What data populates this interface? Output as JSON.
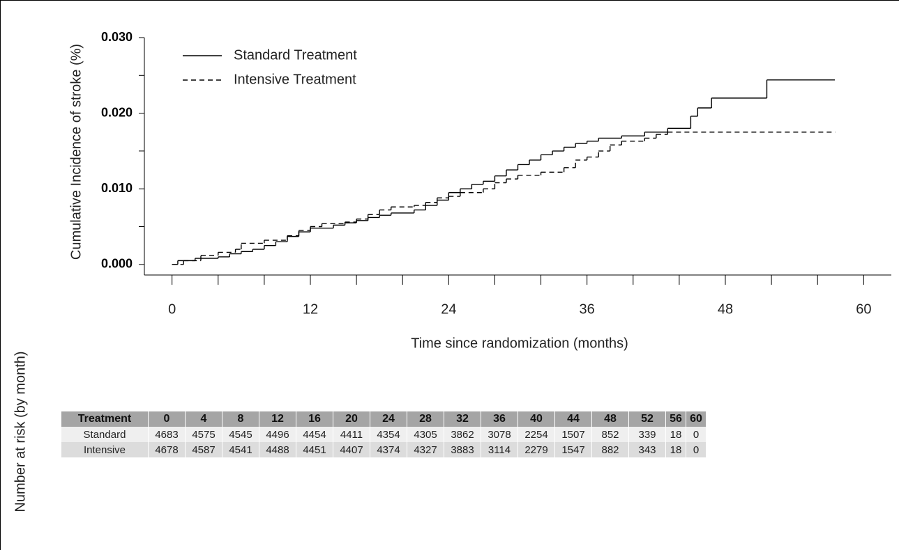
{
  "chart_data": {
    "type": "step",
    "ylabel": "Cumulative Incidence of stroke (%)",
    "xlabel": "Time since randomization (months)",
    "xlim": [
      -2.4,
      62.4
    ],
    "xticks": [
      0,
      12,
      24,
      36,
      48,
      60
    ],
    "xminor_ticks": [
      0,
      4,
      8,
      12,
      16,
      20,
      24,
      28,
      32,
      36,
      40,
      44,
      48,
      52,
      56,
      60
    ],
    "ylim": [
      -0.0014,
      0.03
    ],
    "yticks": [
      {
        "value": 0,
        "label": "0.000"
      },
      {
        "value": 0.01,
        "label": "0.010"
      },
      {
        "value": 0.02,
        "label": "0.020"
      },
      {
        "value": 0.03,
        "label": "0.030"
      }
    ],
    "yminor_ticks": [
      0.005,
      0.015,
      0.025
    ],
    "legend": "upper left",
    "series": [
      {
        "name": "Standard Treatment",
        "color": "#000000",
        "dash": "solid",
        "x": [
          0,
          0.5,
          2,
          4,
          5,
          6,
          7,
          8,
          9,
          10,
          11,
          12,
          14,
          15,
          16,
          17,
          18,
          19,
          21,
          22,
          23,
          24,
          25,
          26,
          27,
          28,
          29,
          30,
          31,
          32,
          33,
          34,
          35,
          36,
          37,
          39,
          41,
          43,
          45,
          45.6,
          46.8,
          51.6,
          57.5
        ],
        "values": [
          0,
          0.0005,
          0.0008,
          0.001,
          0.0014,
          0.0017,
          0.002,
          0.0025,
          0.003,
          0.0037,
          0.0043,
          0.0048,
          0.0052,
          0.0055,
          0.0058,
          0.0062,
          0.0065,
          0.0068,
          0.0072,
          0.0078,
          0.0085,
          0.0095,
          0.01,
          0.0106,
          0.011,
          0.0117,
          0.0125,
          0.0132,
          0.0138,
          0.0145,
          0.015,
          0.0155,
          0.016,
          0.0163,
          0.0167,
          0.017,
          0.0175,
          0.018,
          0.0196,
          0.0207,
          0.022,
          0.0244,
          0.0244
        ]
      },
      {
        "name": "Intensive Treatment",
        "color": "#000000",
        "dash": "dashed",
        "x": [
          0,
          1,
          2.5,
          4,
          5.5,
          6,
          8,
          10,
          11,
          12,
          13,
          15,
          16,
          17,
          18,
          19,
          21,
          22,
          23,
          24,
          25,
          27,
          28,
          29,
          30,
          32,
          34,
          35,
          36,
          37,
          38,
          39,
          41,
          42,
          43,
          57.5
        ],
        "values": [
          0,
          0.0005,
          0.0012,
          0.0016,
          0.002,
          0.0028,
          0.0032,
          0.0038,
          0.0045,
          0.005,
          0.0054,
          0.0056,
          0.006,
          0.0066,
          0.0072,
          0.0076,
          0.0078,
          0.0082,
          0.0088,
          0.009,
          0.0095,
          0.01,
          0.0108,
          0.0113,
          0.0118,
          0.0122,
          0.0128,
          0.0138,
          0.0142,
          0.015,
          0.0158,
          0.0163,
          0.0167,
          0.0172,
          0.0175,
          0.0175
        ]
      }
    ]
  },
  "risk_table": {
    "title": "Number at risk (by month)",
    "columns": [
      "Treatment",
      "0",
      "4",
      "8",
      "12",
      "16",
      "20",
      "24",
      "28",
      "32",
      "36",
      "40",
      "44",
      "48",
      "52",
      "56",
      "60"
    ],
    "rows": [
      [
        "Standard",
        4683,
        4575,
        4545,
        4496,
        4454,
        4411,
        4354,
        4305,
        3862,
        3078,
        2254,
        1507,
        852,
        339,
        18,
        0
      ],
      [
        "Intensive",
        4678,
        4587,
        4541,
        4488,
        4451,
        4407,
        4374,
        4327,
        3883,
        3114,
        2279,
        1547,
        882,
        343,
        18,
        0
      ]
    ]
  }
}
